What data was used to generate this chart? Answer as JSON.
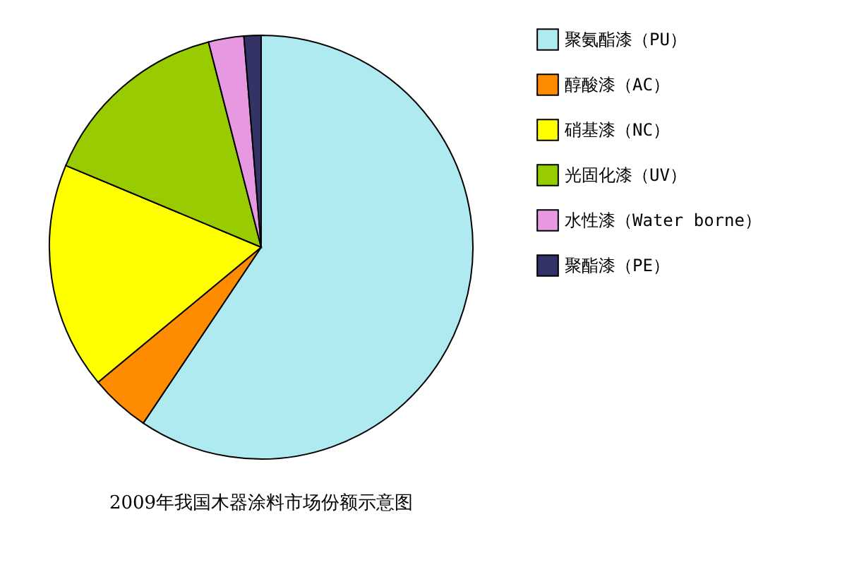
{
  "chart_data": {
    "type": "pie",
    "title": "2009年我国木器涂料市场份额示意图",
    "categories": [
      "聚氨酯漆（PU）",
      "醇酸漆（AC）",
      "硝基漆（NC）",
      "光固化漆（UV）",
      "水性漆（Water borne）",
      "聚酯漆（PE）"
    ],
    "values": [
      59.4,
      4.6,
      17.3,
      14.7,
      2.7,
      1.3
    ],
    "colors": [
      "#aeeaf0",
      "#ff8c00",
      "#ffff00",
      "#99cc00",
      "#e699e0",
      "#333366"
    ],
    "legend": "right"
  }
}
